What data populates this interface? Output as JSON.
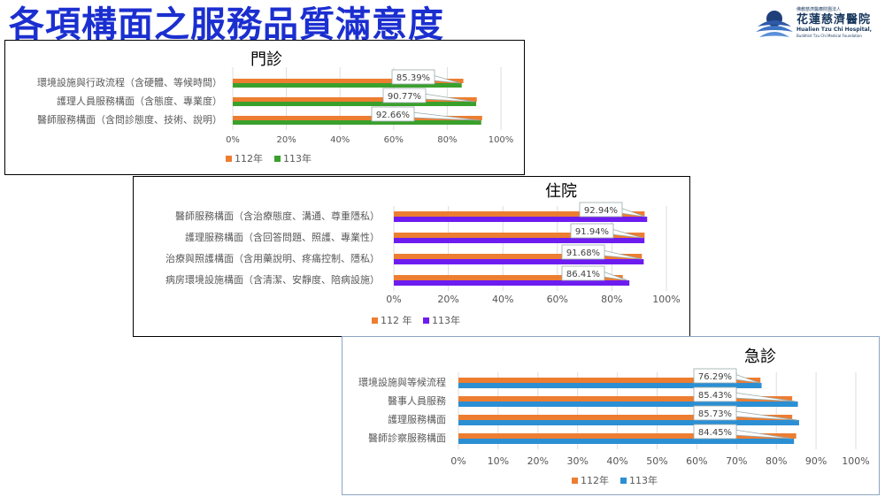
{
  "slide": {
    "title": "各項構面之服務品質滿意度"
  },
  "logo": {
    "line1": "佛教慈濟醫療財團法人",
    "line2": "花蓮慈濟醫院",
    "line3": "Hualien Tzu Chi Hospital,",
    "line4": "Buddhist Tzu Chi Medical Foundation"
  },
  "colors": {
    "title": "#1b2fd0",
    "series_112": "#ed7d31",
    "outpatient_113": "#3aa02c",
    "inpatient_113": "#6d1cf0",
    "emergency_113": "#2b8fd4"
  },
  "chart_data": [
    {
      "type": "bar",
      "orientation": "horizontal",
      "title": "門診",
      "categories": [
        "環境設施與行政流程（含硬體、等候時間）",
        "護理人員服務構面（含態度、專業度）",
        "醫師服務構面（含問診態度、技術、說明）"
      ],
      "series": [
        {
          "name": "112年",
          "values": [
            86,
            91,
            93
          ]
        },
        {
          "name": "113年",
          "values": [
            85.39,
            90.77,
            92.66
          ]
        }
      ],
      "data_labels": [
        "85.39%",
        "90.77%",
        "92.66%"
      ],
      "xlim": [
        0,
        100
      ],
      "x_ticks": [
        "0%",
        "20%",
        "40%",
        "60%",
        "80%",
        "100%"
      ],
      "grid": true,
      "legend": "bottom-left"
    },
    {
      "type": "bar",
      "orientation": "horizontal",
      "title": "住院",
      "categories": [
        "醫師服務構面（含治療態度、溝通、尊重隱私）",
        "護理服務構面（含回答問題、照護、專業性）",
        "治療與照護構面（含用藥說明、疼痛控制、隱私）",
        "病房環境設施構面（含清潔、安靜度、陪病設施）"
      ],
      "series": [
        {
          "name": "112 年",
          "values": [
            92,
            92,
            91,
            84
          ]
        },
        {
          "name": "113年",
          "values": [
            92.94,
            91.94,
            91.68,
            86.41
          ]
        }
      ],
      "data_labels": [
        "92.94%",
        "91.94%",
        "91.68%",
        "86.41%"
      ],
      "xlim": [
        0,
        100
      ],
      "x_ticks": [
        "0%",
        "20%",
        "40%",
        "60%",
        "80%",
        "100%"
      ],
      "grid": true,
      "legend": "bottom-left"
    },
    {
      "type": "bar",
      "orientation": "horizontal",
      "title": "急診",
      "categories": [
        "環境設施與等候流程",
        "醫事人員服務",
        "護理服務構面",
        "醫師診察服務構面"
      ],
      "series": [
        {
          "name": "112年",
          "values": [
            76,
            84,
            84,
            85
          ]
        },
        {
          "name": "113年",
          "values": [
            76.29,
            85.43,
            85.73,
            84.45
          ]
        }
      ],
      "data_labels": [
        "76.29%",
        "85.43%",
        "85.73%",
        "84.45%"
      ],
      "xlim": [
        0,
        100
      ],
      "x_ticks": [
        "0%",
        "10%",
        "20%",
        "30%",
        "40%",
        "50%",
        "60%",
        "70%",
        "80%",
        "90%",
        "100%"
      ],
      "grid": true,
      "legend": "bottom-center"
    }
  ]
}
